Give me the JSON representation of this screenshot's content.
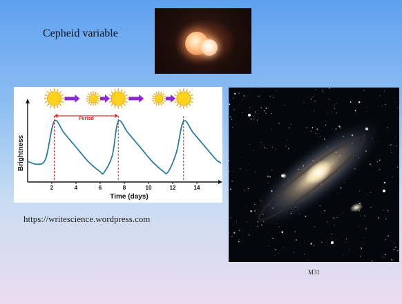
{
  "slide": {
    "title": "Cepheid variable",
    "credit": "https://writescience.wordpress.com",
    "galaxy_caption": "M31"
  },
  "icons": {
    "star_photo": "binary-star-photo",
    "galaxy_photo": "andromeda-galaxy-photo",
    "sun_large": "sun-icon",
    "sun_small": "sun-icon",
    "arrow": "right-arrow-icon"
  },
  "colors": {
    "curve": "#2a7da0",
    "period_marker": "#d62c2c",
    "sun_fill": "#ffd21e",
    "arrow": "#8b2bd1"
  },
  "chart_data": {
    "type": "line",
    "xlabel": "Time (days)",
    "ylabel": "Brightness",
    "x_ticks": [
      2,
      4,
      6,
      8,
      10,
      12,
      14
    ],
    "xlim": [
      0,
      16
    ],
    "annotation": "Period",
    "peaks": [
      2.2,
      7.5,
      12.9
    ],
    "minima": [
      6.3,
      11.6
    ],
    "series": [
      {
        "values": [
          [
            0.0,
            0.3
          ],
          [
            0.8,
            0.25
          ],
          [
            1.5,
            0.35
          ],
          [
            2.2,
            1.0
          ],
          [
            3.0,
            0.8
          ],
          [
            4.0,
            0.55
          ],
          [
            5.0,
            0.3
          ],
          [
            6.0,
            0.12
          ],
          [
            6.3,
            0.1
          ],
          [
            7.0,
            0.4
          ],
          [
            7.5,
            1.0
          ],
          [
            8.3,
            0.8
          ],
          [
            9.3,
            0.55
          ],
          [
            10.3,
            0.3
          ],
          [
            11.2,
            0.13
          ],
          [
            11.6,
            0.11
          ],
          [
            12.3,
            0.45
          ],
          [
            12.9,
            1.0
          ],
          [
            13.7,
            0.8
          ],
          [
            14.7,
            0.55
          ],
          [
            15.6,
            0.33
          ],
          [
            16.0,
            0.27
          ]
        ]
      }
    ],
    "phase_icons": [
      "large",
      "small",
      "small",
      "large",
      "small",
      "large"
    ],
    "grid": false
  }
}
